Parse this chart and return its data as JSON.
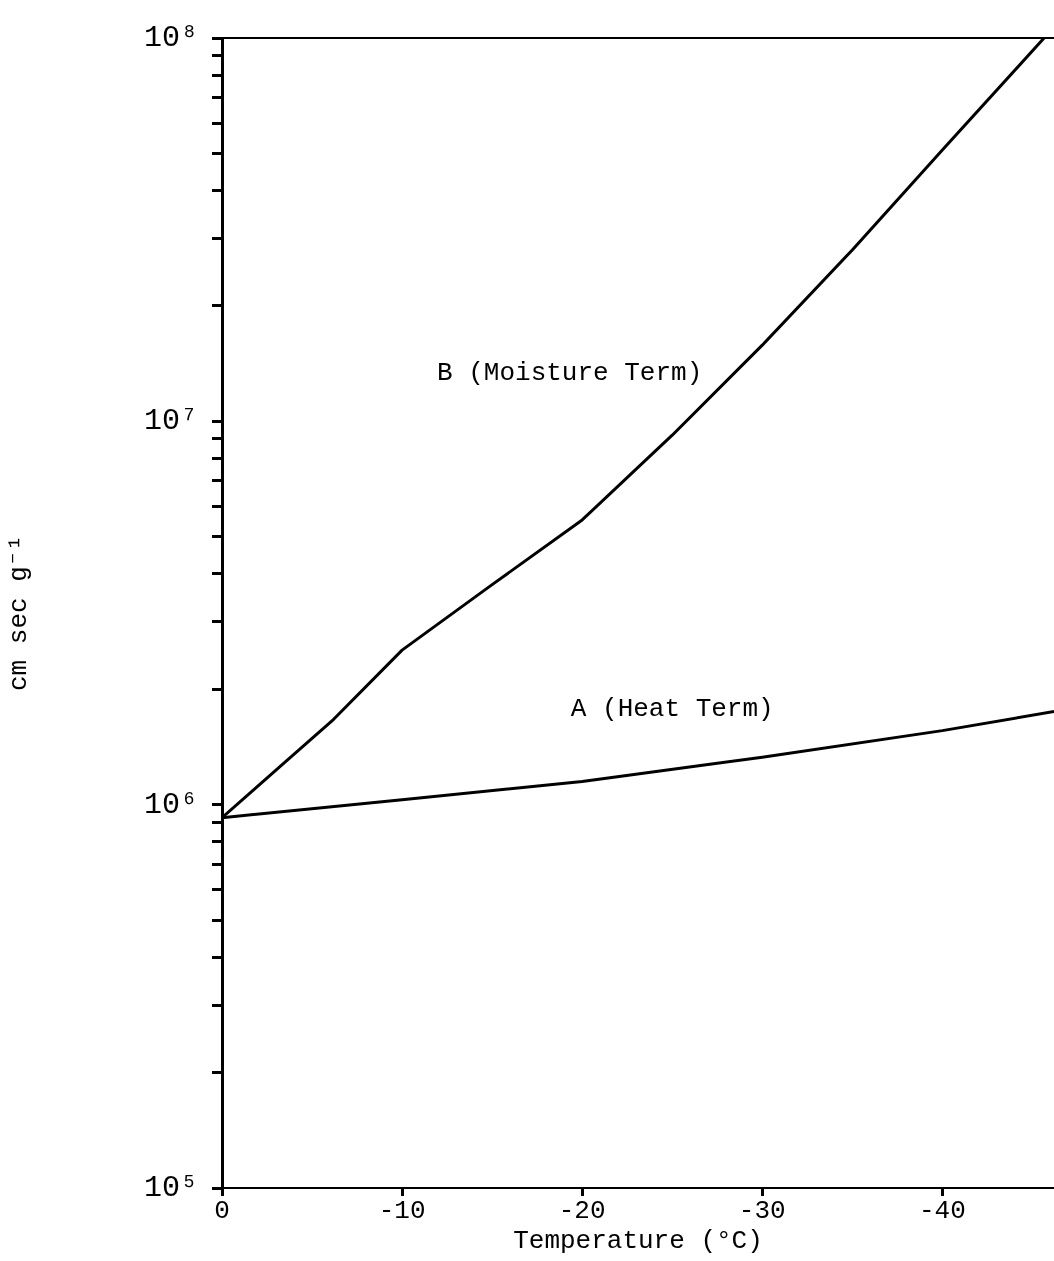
{
  "chart_data": {
    "type": "line",
    "xlabel": "Temperature (°C)",
    "ylabel": "cm sec g⁻¹",
    "log": "y",
    "legend": false,
    "marker": "none",
    "line_style": "solid",
    "xlim": [
      0,
      -46.2
    ],
    "xticks": [
      0,
      -10,
      -20,
      -30,
      -40
    ],
    "ylim": [
      100000,
      100000000
    ],
    "yticks": [
      {
        "value": 100000,
        "label": "10⁵"
      },
      {
        "value": 200000,
        "label": null
      },
      {
        "value": 300000,
        "label": null
      },
      {
        "value": 400000,
        "label": null
      },
      {
        "value": 500000,
        "label": null
      },
      {
        "value": 600000,
        "label": null
      },
      {
        "value": 700000,
        "label": null
      },
      {
        "value": 800000,
        "label": null
      },
      {
        "value": 900000,
        "label": null
      },
      {
        "value": 1000000,
        "label": "10⁶"
      },
      {
        "value": 2000000,
        "label": null
      },
      {
        "value": 3000000,
        "label": null
      },
      {
        "value": 4000000,
        "label": null
      },
      {
        "value": 5000000,
        "label": null
      },
      {
        "value": 6000000,
        "label": null
      },
      {
        "value": 7000000,
        "label": null
      },
      {
        "value": 8000000,
        "label": null
      },
      {
        "value": 9000000,
        "label": null
      },
      {
        "value": 10000000,
        "label": "10⁷"
      },
      {
        "value": 20000000,
        "label": null
      },
      {
        "value": 30000000,
        "label": null
      },
      {
        "value": 40000000,
        "label": null
      },
      {
        "value": 50000000,
        "label": null
      },
      {
        "value": 60000000,
        "label": null
      },
      {
        "value": 70000000,
        "label": null
      },
      {
        "value": 80000000,
        "label": null
      },
      {
        "value": 90000000,
        "label": null
      },
      {
        "value": 100000000,
        "label": "10⁸"
      }
    ],
    "series": [
      {
        "name": "B (Moisture Term)",
        "color": "#000000",
        "x": [
          0,
          -6.2,
          -10,
          -15,
          -20,
          -25,
          -30,
          -35,
          -40,
          -45.65
        ],
        "values": [
          925000,
          1670000,
          2530000,
          3750000,
          5530000,
          9200000,
          15800000,
          28000000,
          51000000,
          100000000
        ]
      },
      {
        "name": "A (Heat Term)",
        "color": "#000000",
        "x": [
          0,
          -10,
          -20,
          -30,
          -40,
          -46.2
        ],
        "values": [
          925000,
          1030000,
          1150000,
          1330000,
          1560000,
          1750000
        ]
      }
    ]
  }
}
